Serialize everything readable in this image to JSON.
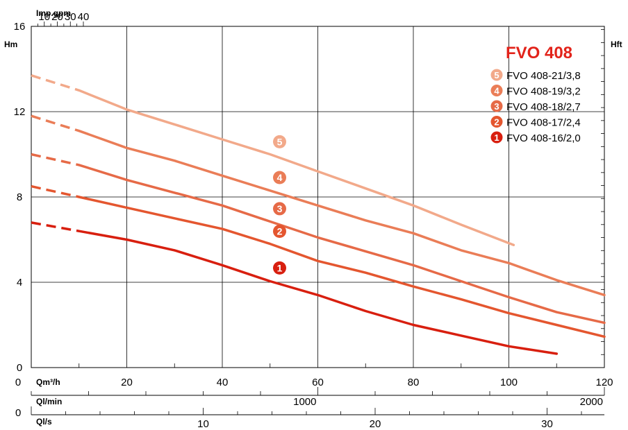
{
  "chart_data": {
    "type": "line",
    "title": "FVO 408",
    "top_axis_label": "Imp.gpm",
    "top_ticks": [
      "10",
      "20",
      "30",
      "40"
    ],
    "left_unit": "Hm",
    "right_unit": "Hft",
    "y_ticks": [
      "16",
      "12",
      "8",
      "4",
      "0"
    ],
    "x_axis_label": "Qm³/h",
    "x_ticks": [
      "0",
      "20",
      "40",
      "60",
      "80",
      "100",
      "120"
    ],
    "x_lim": [
      0,
      120
    ],
    "y_lim": [
      0,
      16
    ],
    "axis2_label": "Ql/min",
    "axis2_ticks": [
      "1000",
      "2000"
    ],
    "axis3_zero": "0",
    "axis3_label": "Ql/s",
    "axis3_ticks": [
      "10",
      "20",
      "30"
    ],
    "series": [
      {
        "badge": "5",
        "name": "FVO 408-21/3,8",
        "color": "#f2a98a",
        "dashed": [
          [
            0,
            13.7
          ],
          [
            10,
            13.0
          ]
        ],
        "points": [
          [
            10,
            13.0
          ],
          [
            20,
            12.1
          ],
          [
            30,
            11.4
          ],
          [
            40,
            10.7
          ],
          [
            50,
            10.0
          ],
          [
            60,
            9.2
          ],
          [
            70,
            8.4
          ],
          [
            80,
            7.6
          ],
          [
            90,
            6.7
          ],
          [
            101,
            5.75
          ]
        ]
      },
      {
        "badge": "4",
        "name": "FVO 408-19/3,2",
        "color": "#ea7d57",
        "dashed": [
          [
            0,
            11.8
          ],
          [
            10,
            11.1
          ]
        ],
        "points": [
          [
            10,
            11.1
          ],
          [
            20,
            10.3
          ],
          [
            30,
            9.7
          ],
          [
            40,
            9.0
          ],
          [
            50,
            8.3
          ],
          [
            60,
            7.6
          ],
          [
            70,
            6.9
          ],
          [
            80,
            6.3
          ],
          [
            90,
            5.5
          ],
          [
            100,
            4.9
          ],
          [
            110,
            4.1
          ],
          [
            120,
            3.4
          ]
        ]
      },
      {
        "badge": "3",
        "name": "FVO 408-18/2,7",
        "color": "#e66a47",
        "dashed": [
          [
            0,
            10.0
          ],
          [
            10,
            9.5
          ]
        ],
        "points": [
          [
            10,
            9.5
          ],
          [
            20,
            8.8
          ],
          [
            30,
            8.2
          ],
          [
            40,
            7.6
          ],
          [
            50,
            6.85
          ],
          [
            60,
            6.1
          ],
          [
            70,
            5.45
          ],
          [
            80,
            4.8
          ],
          [
            90,
            4.05
          ],
          [
            100,
            3.3
          ],
          [
            110,
            2.6
          ],
          [
            120,
            2.1
          ]
        ]
      },
      {
        "badge": "2",
        "name": "FVO 408-17/2,4",
        "color": "#e4562f",
        "dashed": [
          [
            0,
            8.5
          ],
          [
            10,
            8.0
          ]
        ],
        "points": [
          [
            10,
            8.0
          ],
          [
            20,
            7.5
          ],
          [
            30,
            7.0
          ],
          [
            40,
            6.5
          ],
          [
            50,
            5.8
          ],
          [
            60,
            5.0
          ],
          [
            70,
            4.45
          ],
          [
            80,
            3.8
          ],
          [
            90,
            3.2
          ],
          [
            100,
            2.55
          ],
          [
            110,
            2.0
          ],
          [
            120,
            1.45
          ]
        ]
      },
      {
        "badge": "1",
        "name": "FVO 408-16/2,0",
        "color": "#d81f0f",
        "dashed": [
          [
            0,
            6.8
          ],
          [
            10,
            6.4
          ]
        ],
        "points": [
          [
            10,
            6.4
          ],
          [
            20,
            6.0
          ],
          [
            30,
            5.5
          ],
          [
            40,
            4.8
          ],
          [
            50,
            4.05
          ],
          [
            60,
            3.4
          ],
          [
            70,
            2.65
          ],
          [
            80,
            2.0
          ],
          [
            90,
            1.5
          ],
          [
            100,
            1.0
          ],
          [
            110,
            0.65
          ]
        ]
      }
    ]
  }
}
